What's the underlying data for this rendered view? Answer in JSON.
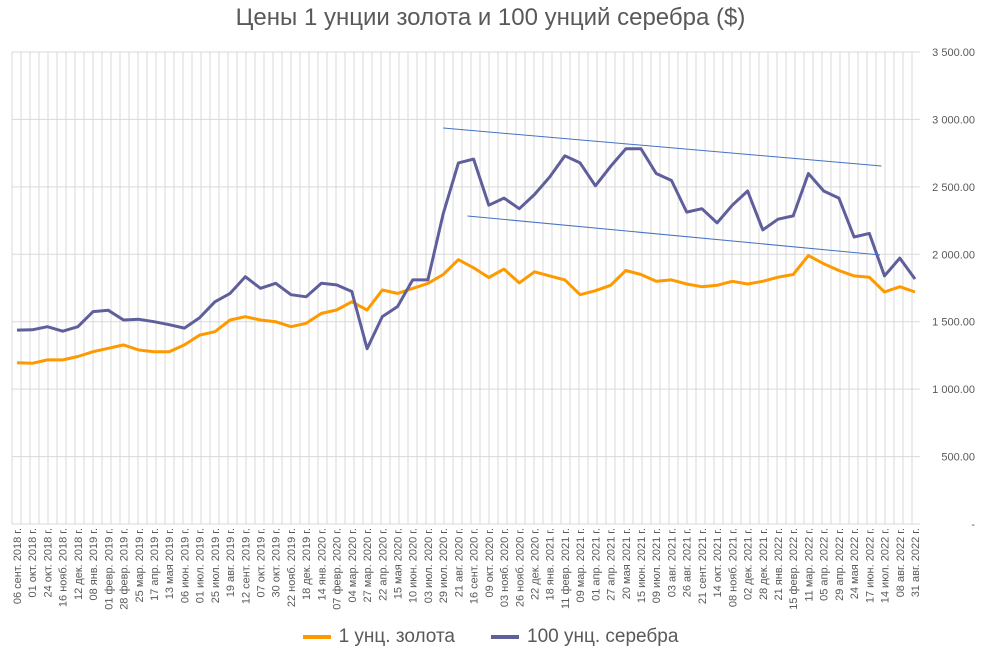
{
  "chart_data": {
    "type": "line",
    "title": "Цены 1 унции золота и 100 унций серебра ($)",
    "categories": [
      "06 сент. 2018 г.",
      "01 окт. 2018 г.",
      "24 окт. 2018 г.",
      "16 нояб. 2018 г.",
      "12 дек. 2018 г.",
      "08 янв. 2019 г.",
      "01 февр. 2019 г.",
      "28 февр. 2019 г.",
      "25 мар. 2019 г.",
      "17 апр. 2019 г.",
      "13 мая 2019 г.",
      "06 июн. 2019 г.",
      "01 июл. 2019 г.",
      "25 июл. 2019 г.",
      "19 авг. 2019 г.",
      "12 сент. 2019 г.",
      "07 окт. 2019 г.",
      "30 окт. 2019 г.",
      "22 нояб. 2019 г.",
      "18 дек. 2019 г.",
      "14 янв. 2020 г.",
      "07 февр. 2020 г.",
      "04 мар. 2020 г.",
      "27 мар. 2020 г.",
      "22 апр. 2020 г.",
      "15 мая 2020 г.",
      "10 июн. 2020 г.",
      "03 июл. 2020 г.",
      "29 июл. 2020 г.",
      "21 авг. 2020 г.",
      "16 сент. 2020 г.",
      "09 окт. 2020 г.",
      "03 нояб. 2020 г.",
      "26 нояб. 2020 г.",
      "22 дек. 2020 г.",
      "18 янв. 2021 г.",
      "11 февр. 2021 г.",
      "09 мар. 2021 г.",
      "01 апр. 2021 г.",
      "27 апр. 2021 г.",
      "20 мая 2021 г.",
      "15 июн. 2021 г.",
      "09 июл. 2021 г.",
      "03 авг. 2021 г.",
      "26 авг. 2021 г.",
      "21 сент. 2021 г.",
      "14 окт. 2021 г.",
      "08 нояб. 2021 г.",
      "02 дек. 2021 г.",
      "28 дек. 2021 г.",
      "21 янв. 2022 г.",
      "15 февр. 2022 г.",
      "11 мар. 2022 г.",
      "05 апр. 2022 г.",
      "29 апр. 2022 г.",
      "24 мая 2022 г.",
      "17 июн. 2022 г.",
      "14 июл. 2022 г.",
      "08 авг. 2022 г.",
      "31 авг. 2022 г."
    ],
    "series": [
      {
        "name": "1 унц. золота",
        "color": "#FF9900",
        "values": [
          1196,
          1192,
          1217,
          1217,
          1242,
          1278,
          1303,
          1328,
          1290,
          1278,
          1278,
          1328,
          1401,
          1426,
          1513,
          1537,
          1513,
          1500,
          1463,
          1488,
          1562,
          1587,
          1648,
          1587,
          1735,
          1710,
          1747,
          1784,
          1850,
          1960,
          1900,
          1828,
          1890,
          1788,
          1870,
          1840,
          1810,
          1700,
          1730,
          1770,
          1880,
          1850,
          1800,
          1810,
          1780,
          1760,
          1770,
          1800,
          1780,
          1800,
          1830,
          1850,
          1990,
          1930,
          1880,
          1840,
          1830,
          1720,
          1760,
          1720
        ]
      },
      {
        "name": "100 унц. серебра",
        "color": "#5F5F9C",
        "values": [
          1438,
          1440,
          1463,
          1430,
          1463,
          1575,
          1585,
          1513,
          1518,
          1500,
          1478,
          1453,
          1530,
          1648,
          1710,
          1834,
          1748,
          1785,
          1700,
          1685,
          1785,
          1773,
          1724,
          1300,
          1538,
          1612,
          1810,
          1810,
          2300,
          2678,
          2706,
          2364,
          2417,
          2338,
          2443,
          2573,
          2730,
          2678,
          2508,
          2652,
          2782,
          2782,
          2599,
          2547,
          2313,
          2338,
          2233,
          2364,
          2469,
          2181,
          2260,
          2285,
          2599,
          2469,
          2417,
          2128,
          2155,
          1840,
          1972,
          1817
        ]
      }
    ],
    "annotations": [
      {
        "type": "trendline",
        "from": {
          "x": 28,
          "y": 2936
        },
        "to": {
          "x": 56.8,
          "y": 2655
        },
        "color": "#4472C4"
      },
      {
        "type": "trendline",
        "from": {
          "x": 29.6,
          "y": 2284
        },
        "to": {
          "x": 56.7,
          "y": 1995
        },
        "color": "#4472C4"
      }
    ],
    "yticks": [
      "-",
      "500.00",
      "1 000.00",
      "1 500.00",
      "2 000.00",
      "2 500.00",
      "3 000.00",
      "3 500.00"
    ],
    "ylim": [
      0,
      3500
    ],
    "y_axis_side": "right",
    "grid": true,
    "legend": "bottom"
  }
}
